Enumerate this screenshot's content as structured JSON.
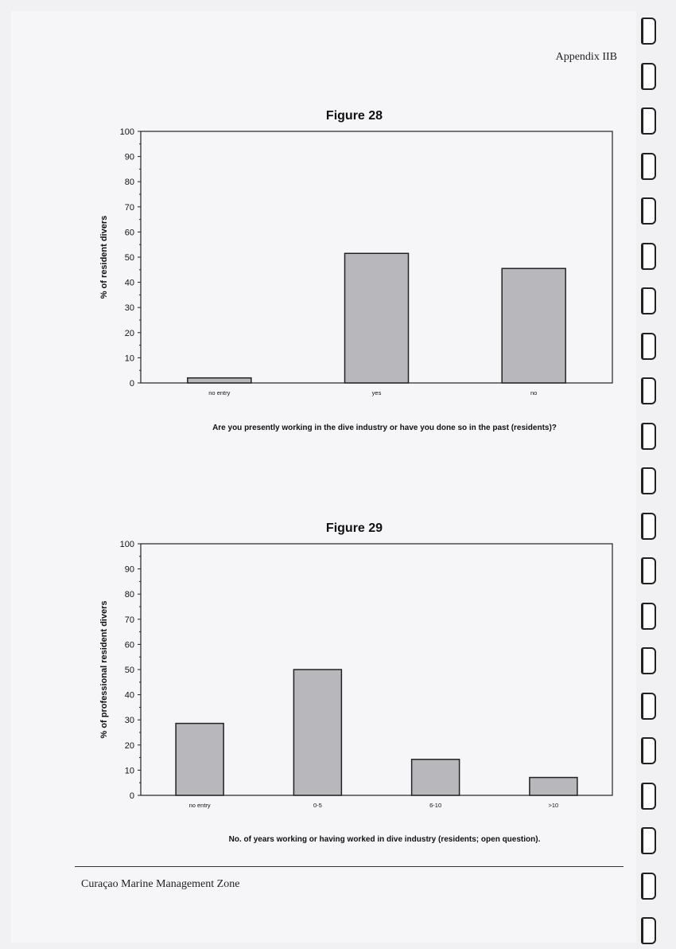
{
  "header": {
    "appendix": "Appendix IIB"
  },
  "footer": {
    "text": "Curaçao Marine Management Zone"
  },
  "colors": {
    "bar_fill": "#b8b8bc",
    "bar_stroke": "#222222"
  },
  "chart_data": [
    {
      "type": "bar",
      "title": "Figure 28",
      "categories": [
        "no entry",
        "yes",
        "no"
      ],
      "values": [
        2,
        51.5,
        45.5
      ],
      "xlabel": "Are you presently working in the dive industry or have you done so in the past (residents)?",
      "ylabel": "% of resident divers",
      "ylim": [
        0,
        100
      ],
      "yticks": [
        0,
        10,
        20,
        30,
        40,
        50,
        60,
        70,
        80,
        90,
        100
      ],
      "grid": false
    },
    {
      "type": "bar",
      "title": "Figure 29",
      "categories": [
        "no entry",
        "0-5",
        "6-10",
        ">10"
      ],
      "values": [
        28.6,
        50,
        14.3,
        7.1
      ],
      "xlabel": "No. of years working or having worked in dive industry (residents; open question).",
      "ylabel": "% of professional resident divers",
      "ylim": [
        0,
        100
      ],
      "yticks": [
        0,
        10,
        20,
        30,
        40,
        50,
        60,
        70,
        80,
        90,
        100
      ],
      "grid": false
    }
  ]
}
